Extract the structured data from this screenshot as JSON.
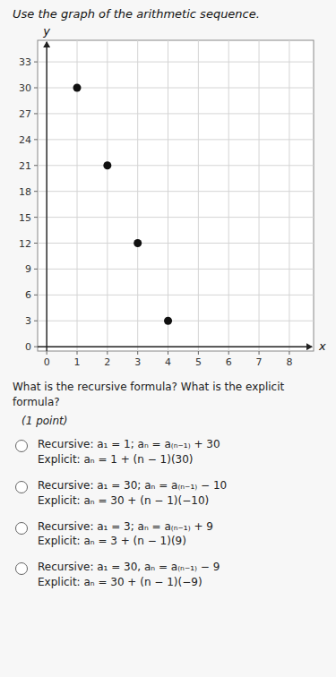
{
  "chart_data": {
    "type": "scatter",
    "title": "Use the graph of the arithmetic sequence.",
    "x": [
      1,
      2,
      3,
      4
    ],
    "values": [
      30,
      21,
      12,
      3
    ],
    "color": "#111111",
    "xlim": [
      -0.3,
      8.8
    ],
    "ylim": [
      -0.5,
      35.5
    ],
    "xticks": [
      0,
      1,
      2,
      3,
      4,
      5,
      6,
      7,
      8
    ],
    "yticks": [
      0,
      3,
      6,
      9,
      12,
      15,
      18,
      21,
      24,
      27,
      30,
      33
    ],
    "xlabel": "x",
    "ylabel": "y",
    "grid": true,
    "annotations": [
      "What is the recursive formula? What is the explicit formula?",
      "(1 point)",
      "Recursive: a₁ = 1; aₙ = a₍ₙ₋₁₎ + 30",
      "Explicit: aₙ = 1 + (n − 1)(30)",
      "Recursive: a₁ = 30; aₙ = a₍ₙ₋₁₎ − 10",
      "Explicit: aₙ = 30 + (n − 1)(−10)",
      "Recursive: a₁ = 3; aₙ = a₍ₙ₋₁₎ + 9",
      "Explicit: aₙ = 3 + (n − 1)(9)",
      "Recursive: a₁ = 30, aₙ = a₍ₙ₋₁₎ − 9",
      "Explicit: aₙ = 30 + (n − 1)(−9)"
    ]
  }
}
